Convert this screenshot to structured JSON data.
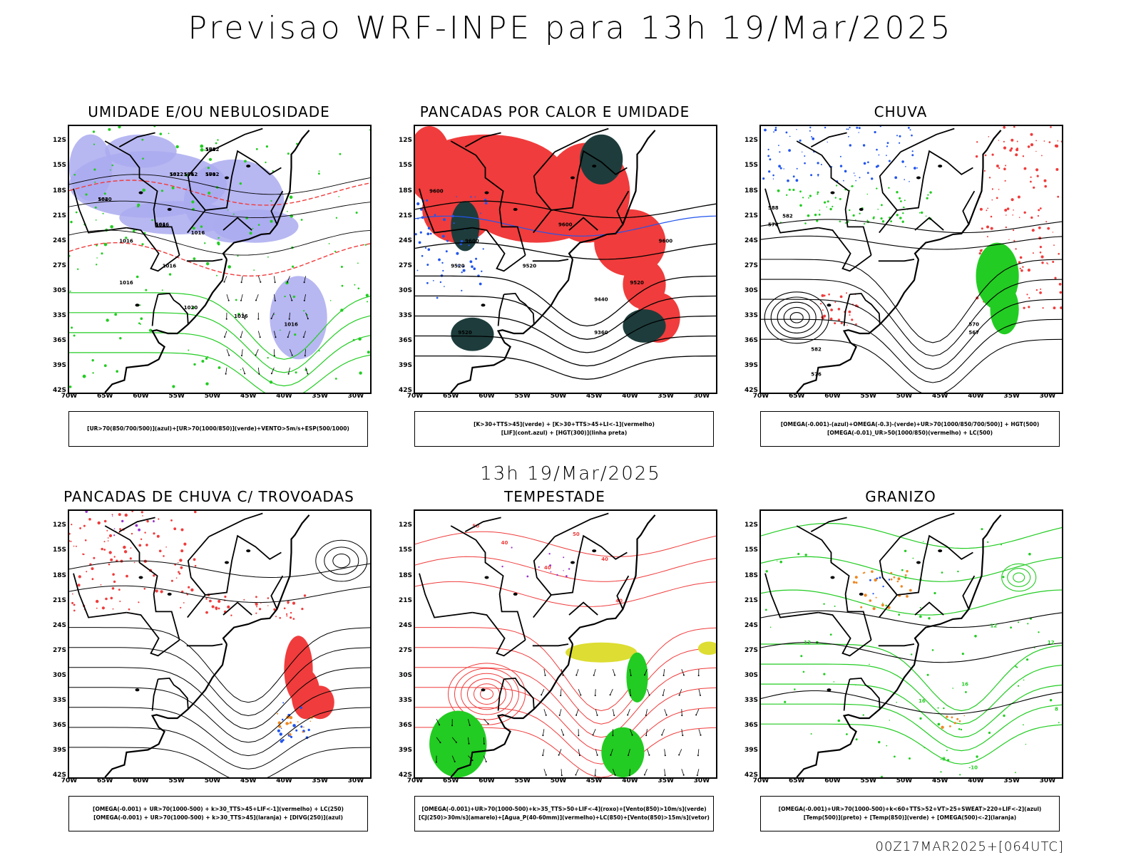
{
  "main_title": "Previsao WRF-INPE  para 13h 19/Mar/2025",
  "mid_title": "13h 19/Mar/2025",
  "footer": "00Z17MAR2025+[064UTC]",
  "axes": {
    "lat_labels": [
      "12S",
      "15S",
      "18S",
      "21S",
      "24S",
      "27S",
      "30S",
      "33S",
      "36S",
      "39S",
      "42S"
    ],
    "lon_labels": [
      "70W",
      "65W",
      "60W",
      "55W",
      "50W",
      "45W",
      "40W",
      "35W",
      "30W"
    ]
  },
  "colors": {
    "blue_shade": "#aaaaf0",
    "green": "#22cc22",
    "red": "#f03c3c",
    "dark_teal": "#1e3c3c",
    "blue": "#2255ee",
    "yellow": "#dddd33",
    "orange": "#ee8822",
    "purple": "#9933cc"
  },
  "panels": [
    {
      "title": "UMIDADE E/OU NEBULOSIDADE",
      "legend": [
        "[UR>70(850/700/500)](azul)+[UR>70(1000/850)](verde)+VENTO>5m/s+ESP(500/1000)"
      ],
      "contour_labels": [
        "1012",
        "1012",
        "1012",
        "1012",
        "1016",
        "1020",
        "1016",
        "1016",
        "1016",
        "1020",
        "1016",
        "1016",
        "1016",
        "576",
        "576",
        "582",
        "570",
        "564",
        "564"
      ]
    },
    {
      "title": "PANCADAS POR CALOR E UMIDADE",
      "legend": [
        "[K>30+TTS>45](verde) + [K>30+TTS>45+LI<-1](vermelho)",
        "[LIF](cont.azul) + [HGT(300)](linha preta)"
      ],
      "contour_labels": [
        "9600",
        "9600",
        "9600",
        "9600",
        "9520",
        "9520",
        "9520",
        "9520",
        "9440",
        "9360"
      ]
    },
    {
      "title": "CHUVA",
      "legend": [
        "[OMEGA(-0.001)-(azul)+OMEGA(-0.3)-(verde)+UR>70(1000/850/700/500)] + HGT(500)",
        "[OMEGA(-0.01)_UR>50(1000/850)(vermelho) + LC(500)"
      ],
      "contour_labels": [
        "588",
        "582",
        "576",
        "570",
        "567",
        "582",
        "576"
      ]
    },
    {
      "title": "PANCADAS DE CHUVA C/ TROVOADAS",
      "legend": [
        "[OMEGA(-0.001) + UR>70(1000-500) + k>30_TTS>45+LIF<-1](vermelho) + LC(250)",
        "[OMEGA(-0.001) + UR>70(1000-500) + k>30_TTS>45](laranja) + [DIVG(250)](azul)"
      ],
      "contour_labels": []
    },
    {
      "title": "TEMPESTADE",
      "legend": [
        "[OMEGA(-0.001)+UR>70(1000-500)+k>35_TTS>50+LIF<-4](roxo)+[Vento(850)>10m/s](verde)",
        "[CJ(250)>30m/s](amarelo)+[Agua_P(40-60mm)](vermelho)+LC(850)+[Vento(850)>15m/s](vetor)"
      ],
      "contour_labels": [
        "40",
        "40",
        "40",
        "50",
        "50",
        "40"
      ]
    },
    {
      "title": "GRANIZO",
      "legend": [
        "[OMEGA(-0.001)+UR>70(1000-500)+k<60+TTS>52+VT>25+SWEAT>220+LIF<-2](azul)",
        "[Temp(500)](preto) + [Temp(850)](verde) + [OMEGA(500)<-2](laranja)"
      ],
      "contour_labels": [
        "12",
        "12",
        "16",
        "16",
        "-8",
        "-10",
        "12",
        "8"
      ]
    }
  ]
}
